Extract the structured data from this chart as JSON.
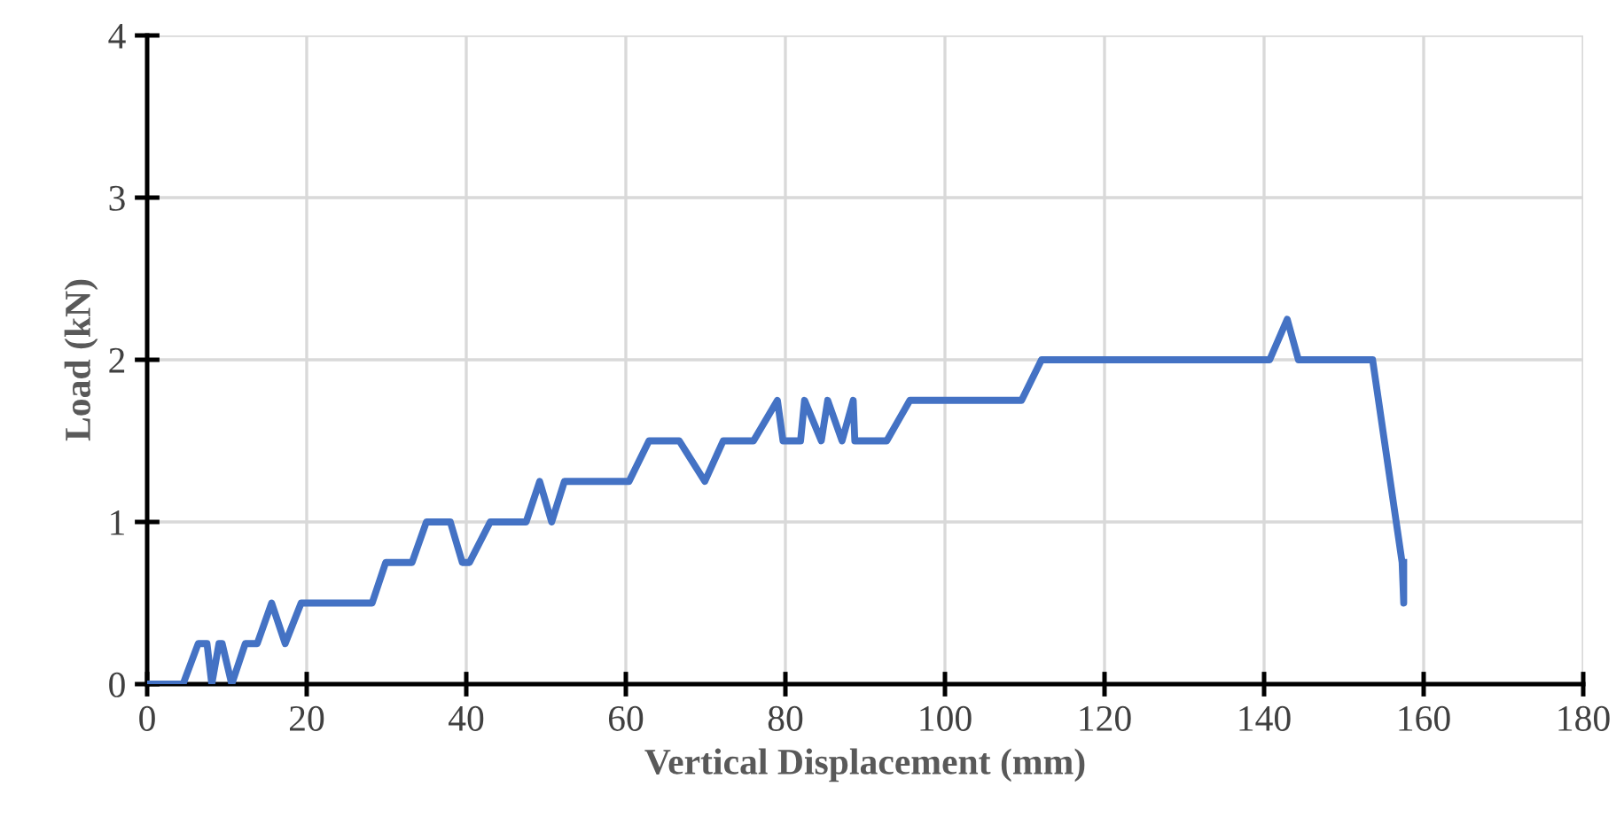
{
  "chart_data": {
    "type": "line",
    "xlabel": "Vertical Displacement (mm)",
    "ylabel": "Load (kN)",
    "xlim": [
      0,
      180
    ],
    "xticks": [
      0,
      20,
      40,
      60,
      80,
      100,
      120,
      140,
      160,
      180
    ],
    "ylim": [
      0,
      4
    ],
    "yticks": [
      0,
      1,
      2,
      3,
      4
    ],
    "grid": true,
    "line_style": "solid",
    "marker": "none",
    "series": [
      {
        "color": "#4472c4",
        "x": [
          0,
          4.5,
          6.4,
          7.5,
          8.1,
          9.0,
          9.4,
          10.6,
          12.3,
          13.8,
          15.6,
          17.3,
          19.3,
          28.2,
          29.9,
          33.2,
          35.0,
          38.0,
          39.5,
          40.4,
          43.0,
          47.5,
          49.2,
          50.7,
          52.3,
          60.4,
          62.9,
          66.7,
          69.9,
          72.2,
          76.0,
          79.0,
          79.7,
          81.9,
          82.4,
          84.5,
          85.3,
          87.1,
          88.5,
          88.7,
          92.7,
          95.6,
          109.6,
          112.1,
          140.7,
          142.9,
          144.3,
          153.6,
          157.3,
          157.5,
          157.5
        ],
        "values": [
          0,
          0,
          0.25,
          0.25,
          0,
          0.25,
          0.25,
          0,
          0.25,
          0.25,
          0.5,
          0.25,
          0.5,
          0.5,
          0.75,
          0.75,
          1.0,
          1.0,
          0.75,
          0.75,
          1.0,
          1.0,
          1.25,
          1.0,
          1.25,
          1.25,
          1.5,
          1.5,
          1.25,
          1.5,
          1.5,
          1.75,
          1.5,
          1.5,
          1.75,
          1.5,
          1.75,
          1.5,
          1.75,
          1.5,
          1.5,
          1.75,
          1.75,
          2.0,
          2.0,
          2.25,
          2.0,
          2.0,
          0.75,
          0.5,
          0.75
        ]
      }
    ]
  }
}
